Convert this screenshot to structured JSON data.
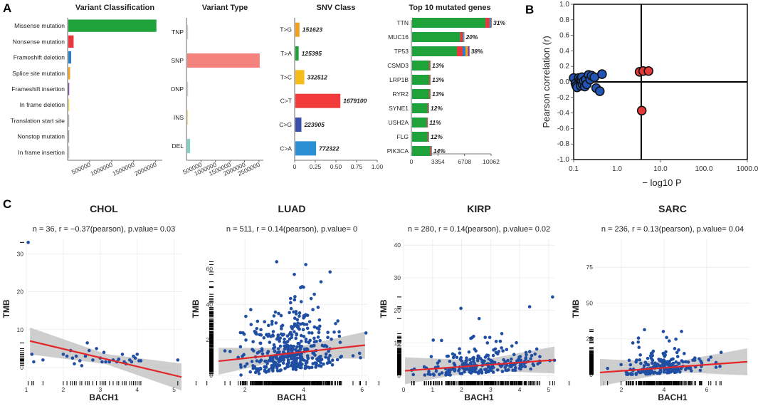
{
  "chart_data": [
    {
      "panel": "A",
      "type": "bar",
      "orientation": "horizontal",
      "title": "Variant Classification",
      "categories": [
        "Missense mutation",
        "Nonsense mutation",
        "Frameshift deletion",
        "Splice site mutation",
        "Frameshift insertion",
        "In frame deletion",
        "Translation start site",
        "Nonstop mutation",
        "In frame insertion"
      ],
      "values": [
        2000000,
        120000,
        65000,
        40000,
        20000,
        6000,
        3000,
        2000,
        1500
      ],
      "colors": [
        "#1fa23a",
        "#e8383d",
        "#2f7ec1",
        "#f4a11a",
        "#7b3fa0",
        "#e8d34a",
        "#b0b0b0",
        "#a0a0a0",
        "#c0c0c0"
      ],
      "xticks": [
        "500000",
        "1000000",
        "1500000",
        "2000000"
      ],
      "xlim": [
        0,
        2150000
      ]
    },
    {
      "panel": "A",
      "type": "bar",
      "orientation": "horizontal",
      "title": "Variant Type",
      "categories": [
        "TNP",
        "SNP",
        "ONP",
        "INS",
        "DEL"
      ],
      "values": [
        3000,
        2500000,
        2000,
        15000,
        100000
      ],
      "colors": [
        "#cccccc",
        "#f4837d",
        "#cccccc",
        "#eedf7a",
        "#7fd3c4"
      ],
      "xticks": [
        "500000",
        "1000000",
        "1500000",
        "2000000",
        "2500000"
      ],
      "xlim": [
        0,
        2650000
      ]
    },
    {
      "panel": "A",
      "type": "bar",
      "orientation": "horizontal",
      "title": "SNV Class",
      "categories": [
        "T>G",
        "T>A",
        "T>C",
        "C>T",
        "C>G",
        "C>A"
      ],
      "values": [
        0.05,
        0.04,
        0.108,
        0.545,
        0.073,
        0.251
      ],
      "labels": [
        "151623",
        "125395",
        "332512",
        "1679100",
        "223905",
        "772322"
      ],
      "colors": [
        "#f4a11a",
        "#1fa23a",
        "#f4bd1a",
        "#f23c3c",
        "#3b4fa8",
        "#2b8fd4"
      ],
      "xticks": [
        "0",
        "0.25",
        "0.50",
        "0.75",
        "1.00"
      ],
      "xlim": [
        0,
        1.0
      ]
    },
    {
      "panel": "A",
      "type": "bar",
      "orientation": "horizontal",
      "title": "Top 10 mutated genes",
      "categories": [
        "TTN",
        "MUC16",
        "TP53",
        "CSMD3",
        "LRP1B",
        "RYR2",
        "SYNE1",
        "USH2A",
        "FLG",
        "PIK3CA"
      ],
      "values": [
        10062,
        6600,
        7250,
        2350,
        2350,
        2350,
        2150,
        2000,
        2150,
        2500
      ],
      "labels": [
        "31%",
        "20%",
        "38%",
        "13%",
        "13%",
        "13%",
        "12%",
        "11%",
        "12%",
        "14%"
      ],
      "xticks": [
        "0",
        "3354",
        "6708",
        "10062"
      ],
      "xlim": [
        0,
        10062
      ]
    },
    {
      "panel": "B",
      "type": "scatter",
      "xlabel": "− log10 P",
      "ylabel": "Pearson correlation (r)",
      "xscale": "log",
      "xlim": [
        0.1,
        1000
      ],
      "ylim": [
        -1.0,
        1.0
      ],
      "xticks": [
        "0.1",
        "1.0",
        "10.0",
        "100.0",
        "1000.0"
      ],
      "yticks": [
        "1.0",
        "0.8",
        "0.6",
        "0.4",
        "0.2",
        "0.0",
        "-0.2",
        "-0.4",
        "-0.6",
        "-0.8",
        "-1.0"
      ],
      "points_blue": [
        [
          0.1,
          0.05
        ],
        [
          0.11,
          -0.02
        ],
        [
          0.115,
          -0.05
        ],
        [
          0.12,
          -0.07
        ],
        [
          0.13,
          0.05
        ],
        [
          0.14,
          0.03
        ],
        [
          0.145,
          -0.05
        ],
        [
          0.15,
          0.02
        ],
        [
          0.155,
          0.06
        ],
        [
          0.16,
          -0.03
        ],
        [
          0.17,
          0.01
        ],
        [
          0.18,
          -0.06
        ],
        [
          0.19,
          0.03
        ],
        [
          0.2,
          -0.03
        ],
        [
          0.22,
          0.09
        ],
        [
          0.24,
          0.03
        ],
        [
          0.26,
          0.08
        ],
        [
          0.3,
          0.06
        ],
        [
          0.33,
          -0.08
        ],
        [
          0.4,
          -0.12
        ],
        [
          0.45,
          0.1
        ]
      ],
      "points_red": [
        [
          3.3,
          0.13
        ],
        [
          4.0,
          0.14
        ],
        [
          5.3,
          0.14
        ],
        [
          3.7,
          -0.37
        ]
      ]
    },
    {
      "panel": "C",
      "type": "scatter",
      "title": "CHOL",
      "subtitle": "n = 36, r = −0.37(pearson), p.value= 0.03",
      "xlabel": "BACH1",
      "ylabel": "TMB",
      "xlim": [
        1,
        5.2
      ],
      "ylim": [
        -3,
        34
      ],
      "xticks": [
        "1",
        "2",
        "3",
        "4",
        "5"
      ],
      "yticks": [
        "0",
        "10",
        "20",
        "30"
      ],
      "fit": [
        [
          1.1,
          7
        ],
        [
          5.2,
          -2.5
        ]
      ],
      "points": [
        [
          1.05,
          33
        ],
        [
          1.15,
          3.5
        ],
        [
          1.2,
          1.5
        ],
        [
          1.45,
          2
        ],
        [
          2.0,
          3.5
        ],
        [
          2.1,
          3
        ],
        [
          2.2,
          4.5
        ],
        [
          2.25,
          2.5
        ],
        [
          2.35,
          3
        ],
        [
          2.45,
          1.8
        ],
        [
          2.5,
          0.5
        ],
        [
          2.6,
          3
        ],
        [
          2.65,
          6.5
        ],
        [
          2.7,
          4.5
        ],
        [
          2.8,
          2
        ],
        [
          2.9,
          5
        ],
        [
          3.0,
          2.5
        ],
        [
          3.05,
          1.5
        ],
        [
          3.1,
          4
        ],
        [
          3.15,
          1.5
        ],
        [
          3.25,
          1.5
        ],
        [
          3.35,
          2
        ],
        [
          3.45,
          1.5
        ],
        [
          3.5,
          2.2
        ],
        [
          3.6,
          3.5
        ],
        [
          3.65,
          1.5
        ],
        [
          3.7,
          1
        ],
        [
          3.8,
          2
        ],
        [
          3.85,
          1.5
        ],
        [
          3.9,
          3
        ],
        [
          3.95,
          2.5
        ],
        [
          4.0,
          3.5
        ],
        [
          4.05,
          1.8
        ],
        [
          4.1,
          1.8
        ],
        [
          2.3,
          1
        ],
        [
          5.1,
          2
        ]
      ]
    },
    {
      "panel": "C",
      "type": "scatter",
      "title": "LUAD",
      "subtitle": "n = 511, r = 0.14(pearson), p.value= 0",
      "xlabel": "BACH1",
      "ylabel": "TMB",
      "xlim": [
        1,
        6.2
      ],
      "ylim": [
        -2,
        77
      ],
      "xticks": [
        "2",
        "4",
        "6"
      ],
      "yticks": [
        "0",
        "20",
        "40",
        "60"
      ],
      "fit": [
        [
          1.1,
          8
        ],
        [
          6.1,
          17
        ]
      ]
    },
    {
      "panel": "C",
      "type": "scatter",
      "title": "KIRP",
      "subtitle": "n = 280, r = 0.14(pearson), p.value= 0.02",
      "xlabel": "BACH1",
      "ylabel": "TMB",
      "xlim": [
        0,
        5.2
      ],
      "ylim": [
        -1,
        42
      ],
      "xticks": [
        "0",
        "1",
        "2",
        "3",
        "4",
        "5"
      ],
      "yticks": [
        "0",
        "10",
        "20",
        "30",
        "40"
      ],
      "fit": [
        [
          0.05,
          1.5
        ],
        [
          5.2,
          4.8
        ]
      ]
    },
    {
      "panel": "C",
      "type": "scatter",
      "title": "SARC",
      "subtitle": "n = 236, r = 0.13(pearson), p.value= 0.04",
      "xlabel": "BACH1",
      "ylabel": "TMB",
      "xlim": [
        0.8,
        8
      ],
      "ylim": [
        -3,
        95
      ],
      "xticks": [
        "2",
        "4",
        "6"
      ],
      "yticks": [
        "0",
        "25",
        "50",
        "75"
      ],
      "fit": [
        [
          1.0,
          1.5
        ],
        [
          7.9,
          9
        ]
      ]
    }
  ],
  "labels": {
    "panel_a": "A",
    "panel_b": "B",
    "panel_c": "C"
  }
}
